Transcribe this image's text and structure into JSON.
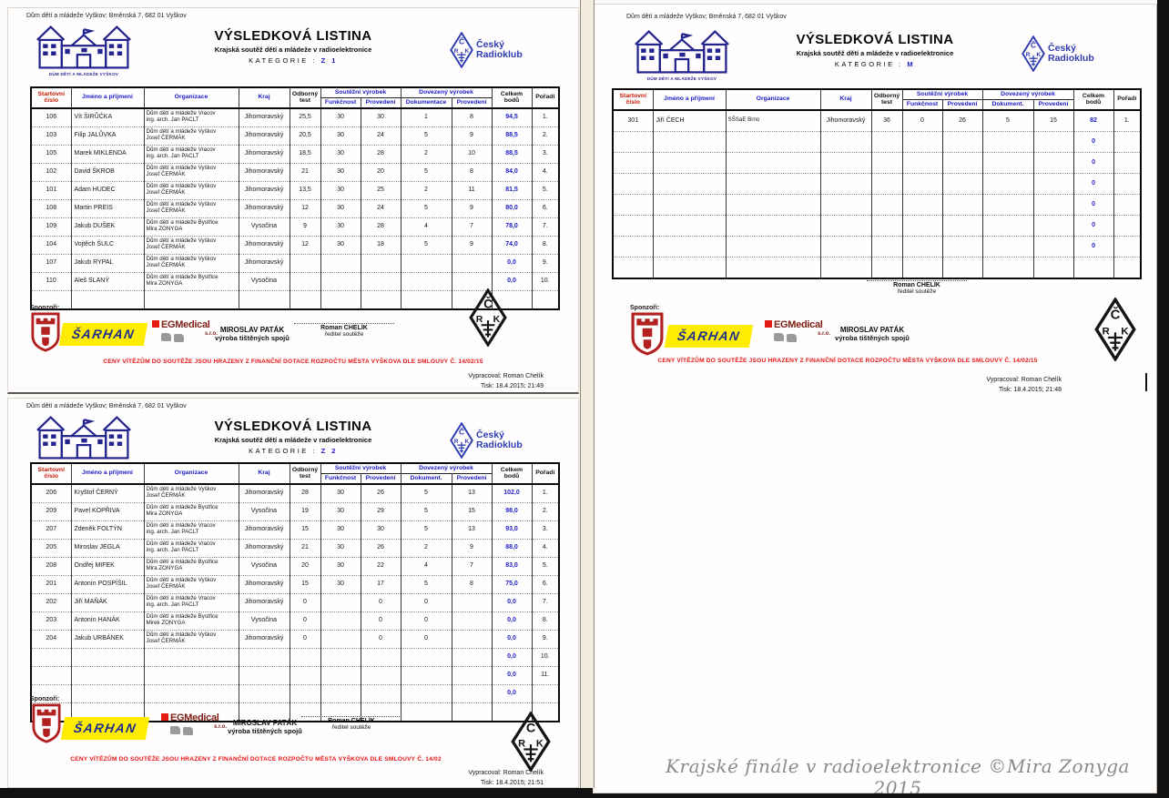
{
  "scan": {
    "address": "Dům dětí a mládeže Vyškov; Brněnská 7, 682 01 Vyškov",
    "title": "VÝSLEDKOVÁ LISTINA",
    "subtitle": "Krajská soutěž dětí a mládeže v radioelektronice",
    "category_label": "KATEGORIE :",
    "ddm_logo_text": "DŮM DĚTÍ A MLÁDEŽE VYŠKOV",
    "radioklub_line1": "Český",
    "radioklub_line2": "Radioklub",
    "crk_letters": {
      "c": "Č",
      "r": "R",
      "k": "K"
    },
    "sponsors_label": "Sponzoři:",
    "sponsor_sarhan": "ŠARHAN",
    "sponsor_egmedical": "EGMedical",
    "sponsor_egmedical_sro": "s.r.o.",
    "sponsor_patak_line1": "MIROSLAV PATÁK",
    "sponsor_patak_line2": "výroba tištěných spojů",
    "signature_name": "Roman CHELÍK",
    "signature_role": "ředitel soutěže",
    "prepared_by": "Vypracoval: Roman Chelík"
  },
  "headers": {
    "cislo": "Startovní číslo",
    "jmeno": "Jméno a příjmení",
    "organizace": "Organizace",
    "kraj": "Kraj",
    "odborny": "Odborný test",
    "soutezni": "Soutěžní výrobek",
    "dovezeny": "Dovezený výrobek",
    "funkcnost": "Funkčnost",
    "provedeni": "Provedení",
    "celkem": "Celkem bodů",
    "poradi": "Pořadí"
  },
  "colors": {
    "header_blue": "#1b1bc8",
    "header_red": "#c81800",
    "value_blue": "#1b1bc8",
    "logo_navy": "#24248e",
    "radioklub_blue": "#2d3cb0",
    "disclaimer_red": "#e81414",
    "sarhan_navy": "#1c2f8f",
    "sarhan_yellow": "#ffec00",
    "egmedical_maroon": "#7c1f15",
    "shield_red": "#b22020",
    "caption_gray": "#8a8a8a"
  },
  "caption": "Krajské finále v radioelektronice ©Mira Zonyga 2015",
  "pages": [
    {
      "id": "Z1",
      "category": "Z 1",
      "dokument_label": "Dokumentace",
      "disclaimer": "CENY VÍTĚZŮM DO SOUTĚŽE JSOU HRAZENY Z FINANČNÍ DOTACE ROZPOČTU MĚSTA VYŠKOVA DLE SMLOUVY Č. 14/02/15",
      "tisk": "Tisk: 18.4.2015; 21:49",
      "rows": [
        {
          "c": "106",
          "j": "Vít ŠIRŮČKA",
          "o1": "Dům dětí a mládeže Vracov",
          "o2": "ing. arch. Jan PACLT",
          "k": "Jihomoravský",
          "t": "25,5",
          "f": "30",
          "p1": "30",
          "d": "1",
          "p2": "8",
          "cb": "94,5",
          "por": "1."
        },
        {
          "c": "103",
          "j": "Filip JALŮVKA",
          "o1": "Dům dětí a mládeže Vyškov",
          "o2": "Josef ČERMÁK",
          "k": "Jihomoravský",
          "t": "20,5",
          "f": "30",
          "p1": "24",
          "d": "5",
          "p2": "9",
          "cb": "88,5",
          "por": "2."
        },
        {
          "c": "105",
          "j": "Marek MIKLENDA",
          "o1": "Dům dětí a mládeže Vracov",
          "o2": "ing. arch. Jan PACLT",
          "k": "Jihomoravský",
          "t": "18,5",
          "f": "30",
          "p1": "28",
          "d": "2",
          "p2": "10",
          "cb": "88,5",
          "por": "3."
        },
        {
          "c": "102",
          "j": "David ŠKROB",
          "o1": "Dům dětí a mládeže Vyškov",
          "o2": "Josef ČERMÁK",
          "k": "Jihomoravský",
          "t": "21",
          "f": "30",
          "p1": "20",
          "d": "5",
          "p2": "8",
          "cb": "84,0",
          "por": "4."
        },
        {
          "c": "101",
          "j": "Adam HUDEC",
          "o1": "Dům dětí a mládeže Vyškov",
          "o2": "Josef ČERMÁK",
          "k": "Jihomoravský",
          "t": "13,5",
          "f": "30",
          "p1": "25",
          "d": "2",
          "p2": "11",
          "cb": "81,5",
          "por": "5."
        },
        {
          "c": "108",
          "j": "Martin PREIS",
          "o1": "Dům dětí a mládeže Vyškov",
          "o2": "Josef ČERMÁK",
          "k": "Jihomoravský",
          "t": "12",
          "f": "30",
          "p1": "24",
          "d": "5",
          "p2": "9",
          "cb": "80,0",
          "por": "6."
        },
        {
          "c": "109",
          "j": "Jakub DUŠEK",
          "o1": "Dům dětí a mládeže Bystřice",
          "o2": "Mira ZONYGA",
          "k": "Vysočina",
          "t": "9",
          "f": "30",
          "p1": "28",
          "d": "4",
          "p2": "7",
          "cb": "78,0",
          "por": "7."
        },
        {
          "c": "104",
          "j": "Vojtěch ŠULC",
          "o1": "Dům dětí a mládeže Vyškov",
          "o2": "Josef ČERMÁK",
          "k": "Jihomoravský",
          "t": "12",
          "f": "30",
          "p1": "18",
          "d": "5",
          "p2": "9",
          "cb": "74,0",
          "por": "8."
        },
        {
          "c": "107",
          "j": "Jakub RYPAL",
          "o1": "Dům dětí a mládeže Vyškov",
          "o2": "Josef ČERMÁK",
          "k": "Jihomoravský",
          "t": "",
          "f": "",
          "p1": "",
          "d": "",
          "p2": "",
          "cb": "0,0",
          "por": "9."
        },
        {
          "c": "110",
          "j": "Aleš SLANÝ",
          "o1": "Dům dětí a mládeže Bystřice",
          "o2": "Mira ZONYGA",
          "k": "Vysočina",
          "t": "",
          "f": "",
          "p1": "",
          "d": "",
          "p2": "",
          "cb": "0,0",
          "por": "10."
        },
        {
          "c": "",
          "j": "",
          "o1": "",
          "o2": "",
          "k": "",
          "t": "",
          "f": "",
          "p1": "",
          "d": "",
          "p2": "",
          "cb": "",
          "por": ""
        }
      ]
    },
    {
      "id": "Z2",
      "category": "Z 2",
      "dokument_label": "Dokument.",
      "disclaimer": "CENY VÍTĚZŮM DO SOUTĚŽE JSOU HRAZENY Z FINANČNÍ DOTACE ROZPOČTU MĚSTA VYŠKOVA DLE SMLOUVY Č. 14/02",
      "tisk": "Tisk: 18.4.2015; 21:51",
      "rows": [
        {
          "c": "206",
          "j": "Kryštof ČERNÝ",
          "o1": "Dům dětí a mládeže Vyškov",
          "o2": "Josef ČERMÁK",
          "k": "Jihomoravský",
          "t": "28",
          "f": "30",
          "p1": "26",
          "d": "5",
          "p2": "13",
          "cb": "102,0",
          "por": "1."
        },
        {
          "c": "209",
          "j": "Pavel KOPŘIVA",
          "o1": "Dům dětí a mládeže Bystřice",
          "o2": "Mira ZONYGA",
          "k": "Vysočina",
          "t": "19",
          "f": "30",
          "p1": "29",
          "d": "5",
          "p2": "15",
          "cb": "98,0",
          "por": "2."
        },
        {
          "c": "207",
          "j": "Zdeněk FOLTÝN",
          "o1": "Dům dětí a mládeže Vracov",
          "o2": "ing. arch. Jan PACLT",
          "k": "Jihomoravský",
          "t": "15",
          "f": "30",
          "p1": "30",
          "d": "5",
          "p2": "13",
          "cb": "93,0",
          "por": "3."
        },
        {
          "c": "205",
          "j": "Miroslav JEGLA",
          "o1": "Dům dětí a mládeže Vracov",
          "o2": "ing. arch. Jan PACLT",
          "k": "Jihomoravský",
          "t": "21",
          "f": "30",
          "p1": "26",
          "d": "2",
          "p2": "9",
          "cb": "88,0",
          "por": "4."
        },
        {
          "c": "208",
          "j": "Ondřej MIFEK",
          "o1": "Dům dětí a mládeže Bystřice",
          "o2": "Mira ZONYGA",
          "k": "Vysočina",
          "t": "20",
          "f": "30",
          "p1": "22",
          "d": "4",
          "p2": "7",
          "cb": "83,0",
          "por": "5."
        },
        {
          "c": "201",
          "j": "Antonín POSPÍŠIL",
          "o1": "Dům dětí a mládeže Vyškov",
          "o2": "Josef ČERMÁK",
          "k": "Jihomoravský",
          "t": "15",
          "f": "30",
          "p1": "17",
          "d": "5",
          "p2": "8",
          "cb": "75,0",
          "por": "6."
        },
        {
          "c": "202",
          "j": "Jiří MAŇÁK",
          "o1": "Dům dětí a mládeže Vracov",
          "o2": "ing. arch. Jan PACLT",
          "k": "Jihomoravský",
          "t": "0",
          "f": "",
          "p1": "0",
          "d": "0",
          "p2": "",
          "cb": "0,0",
          "por": "7."
        },
        {
          "c": "203",
          "j": "Antonín HANÁK",
          "o1": "Dům dětí a mládeže Bystřice",
          "o2": "Mirek ZONYGA",
          "k": "Vysočina",
          "t": "0",
          "f": "",
          "p1": "0",
          "d": "0",
          "p2": "",
          "cb": "0,0",
          "por": "8."
        },
        {
          "c": "204",
          "j": "Jakub URBÁNEK",
          "o1": "Dům dětí a mládeže Vyškov",
          "o2": "Josef ČERMÁK",
          "k": "Jihomoravský",
          "t": "0",
          "f": "",
          "p1": "0",
          "d": "0",
          "p2": "",
          "cb": "0,0",
          "por": "9."
        },
        {
          "c": "",
          "j": "",
          "o1": "",
          "o2": "",
          "k": "",
          "t": "",
          "f": "",
          "p1": "",
          "d": "",
          "p2": "",
          "cb": "0,0",
          "por": "10."
        },
        {
          "c": "",
          "j": "",
          "o1": "",
          "o2": "",
          "k": "",
          "t": "",
          "f": "",
          "p1": "",
          "d": "",
          "p2": "",
          "cb": "0,0",
          "por": "11."
        },
        {
          "c": "",
          "j": "",
          "o1": "",
          "o2": "",
          "k": "",
          "t": "",
          "f": "",
          "p1": "",
          "d": "",
          "p2": "",
          "cb": "0,0",
          "por": ""
        },
        {
          "c": "",
          "j": "",
          "o1": "",
          "o2": "",
          "k": "",
          "t": "",
          "f": "",
          "p1": "",
          "d": "",
          "p2": "",
          "cb": "",
          "por": ""
        }
      ]
    },
    {
      "id": "M",
      "category": "M",
      "dokument_label": "Dokument.",
      "disclaimer": "CENY VÍTĚZŮM DO SOUTĚŽE JSOU HRAZENY Z FINANČNÍ DOTACE ROZPOČTU MĚSTA VYŠKOVA DLE SMLOUVY Č. 14/02/15",
      "tisk": "Tisk: 18.4.2015; 21:48",
      "rows": [
        {
          "c": "301",
          "j": "Jiří ČECH",
          "o1": "SŠSaE Brno",
          "o2": "",
          "k": "Jihomoravský",
          "t": "36",
          "f": "0",
          "p1": "26",
          "d": "5",
          "p2": "15",
          "cb": "82",
          "por": "1."
        },
        {
          "c": "",
          "j": "",
          "o1": "",
          "o2": "",
          "k": "",
          "t": "",
          "f": "",
          "p1": "",
          "d": "",
          "p2": "",
          "cb": "0",
          "por": ""
        },
        {
          "c": "",
          "j": "",
          "o1": "",
          "o2": "",
          "k": "",
          "t": "",
          "f": "",
          "p1": "",
          "d": "",
          "p2": "",
          "cb": "0",
          "por": ""
        },
        {
          "c": "",
          "j": "",
          "o1": "",
          "o2": "",
          "k": "",
          "t": "",
          "f": "",
          "p1": "",
          "d": "",
          "p2": "",
          "cb": "0",
          "por": ""
        },
        {
          "c": "",
          "j": "",
          "o1": "",
          "o2": "",
          "k": "",
          "t": "",
          "f": "",
          "p1": "",
          "d": "",
          "p2": "",
          "cb": "0",
          "por": ""
        },
        {
          "c": "",
          "j": "",
          "o1": "",
          "o2": "",
          "k": "",
          "t": "",
          "f": "",
          "p1": "",
          "d": "",
          "p2": "",
          "cb": "0",
          "por": ""
        },
        {
          "c": "",
          "j": "",
          "o1": "",
          "o2": "",
          "k": "",
          "t": "",
          "f": "",
          "p1": "",
          "d": "",
          "p2": "",
          "cb": "0",
          "por": ""
        },
        {
          "c": "",
          "j": "",
          "o1": "",
          "o2": "",
          "k": "",
          "t": "",
          "f": "",
          "p1": "",
          "d": "",
          "p2": "",
          "cb": "",
          "por": ""
        }
      ]
    }
  ]
}
